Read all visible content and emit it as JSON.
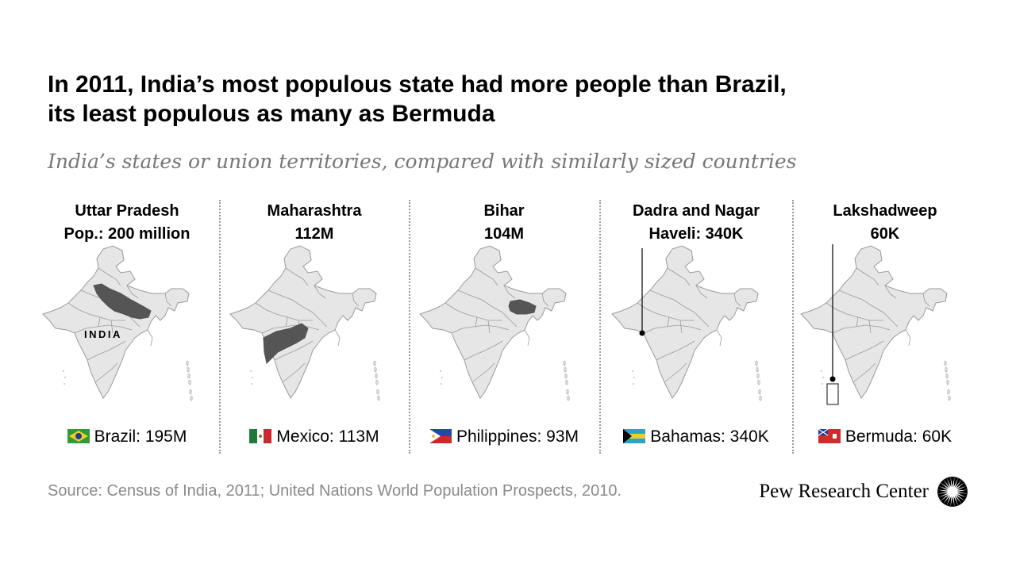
{
  "title": {
    "line1": "In 2011, India’s most populous state had more people than Brazil,",
    "line2": "its least populous as many as Bermuda"
  },
  "subtitle": "India’s states or union territories, compared with similarly sized countries",
  "map_label": "INDIA",
  "source": "Source: Census of India, 2011; United Nations World Population Prospects, 2010.",
  "logo": {
    "text": "Pew Research Center",
    "icon": "sunburst-logo-icon"
  },
  "colors": {
    "land": "#e6e6e6",
    "border": "#9b9b9b",
    "highlight": "#555555",
    "divider": "#9a9a9a",
    "source": "#8a8a8a",
    "subtitle": "#777777"
  },
  "chart_data": {
    "type": "map-comparison",
    "panels": [
      {
        "state": "Uttar Pradesh",
        "title_lines": [
          "Uttar Pradesh",
          "Pop.: 200 million"
        ],
        "population_millions": 200,
        "country": "Brazil",
        "country_label": "Brazil: 195M",
        "country_population_millions": 195,
        "flag": "brazil-flag-icon"
      },
      {
        "state": "Maharashtra",
        "title_lines": [
          "Maharashtra",
          "112M"
        ],
        "population_millions": 112,
        "country": "Mexico",
        "country_label": "Mexico: 113M",
        "country_population_millions": 113,
        "flag": "mexico-flag-icon"
      },
      {
        "state": "Bihar",
        "title_lines": [
          "Bihar",
          "104M"
        ],
        "population_millions": 104,
        "country": "Philippines",
        "country_label": "Philippines: 93M",
        "country_population_millions": 93,
        "flag": "philippines-flag-icon"
      },
      {
        "state": "Dadra and Nagar Haveli",
        "title_lines": [
          "Dadra and Nagar",
          "Haveli: 340K"
        ],
        "population_millions": 0.34,
        "country": "Bahamas",
        "country_label": "Bahamas: 340K",
        "country_population_millions": 0.34,
        "flag": "bahamas-flag-icon"
      },
      {
        "state": "Lakshadweep",
        "title_lines": [
          "Lakshadweep",
          "60K"
        ],
        "population_millions": 0.06,
        "country": "Bermuda",
        "country_label": "Bermuda: 60K",
        "country_population_millions": 0.06,
        "flag": "bermuda-flag-icon"
      }
    ]
  }
}
